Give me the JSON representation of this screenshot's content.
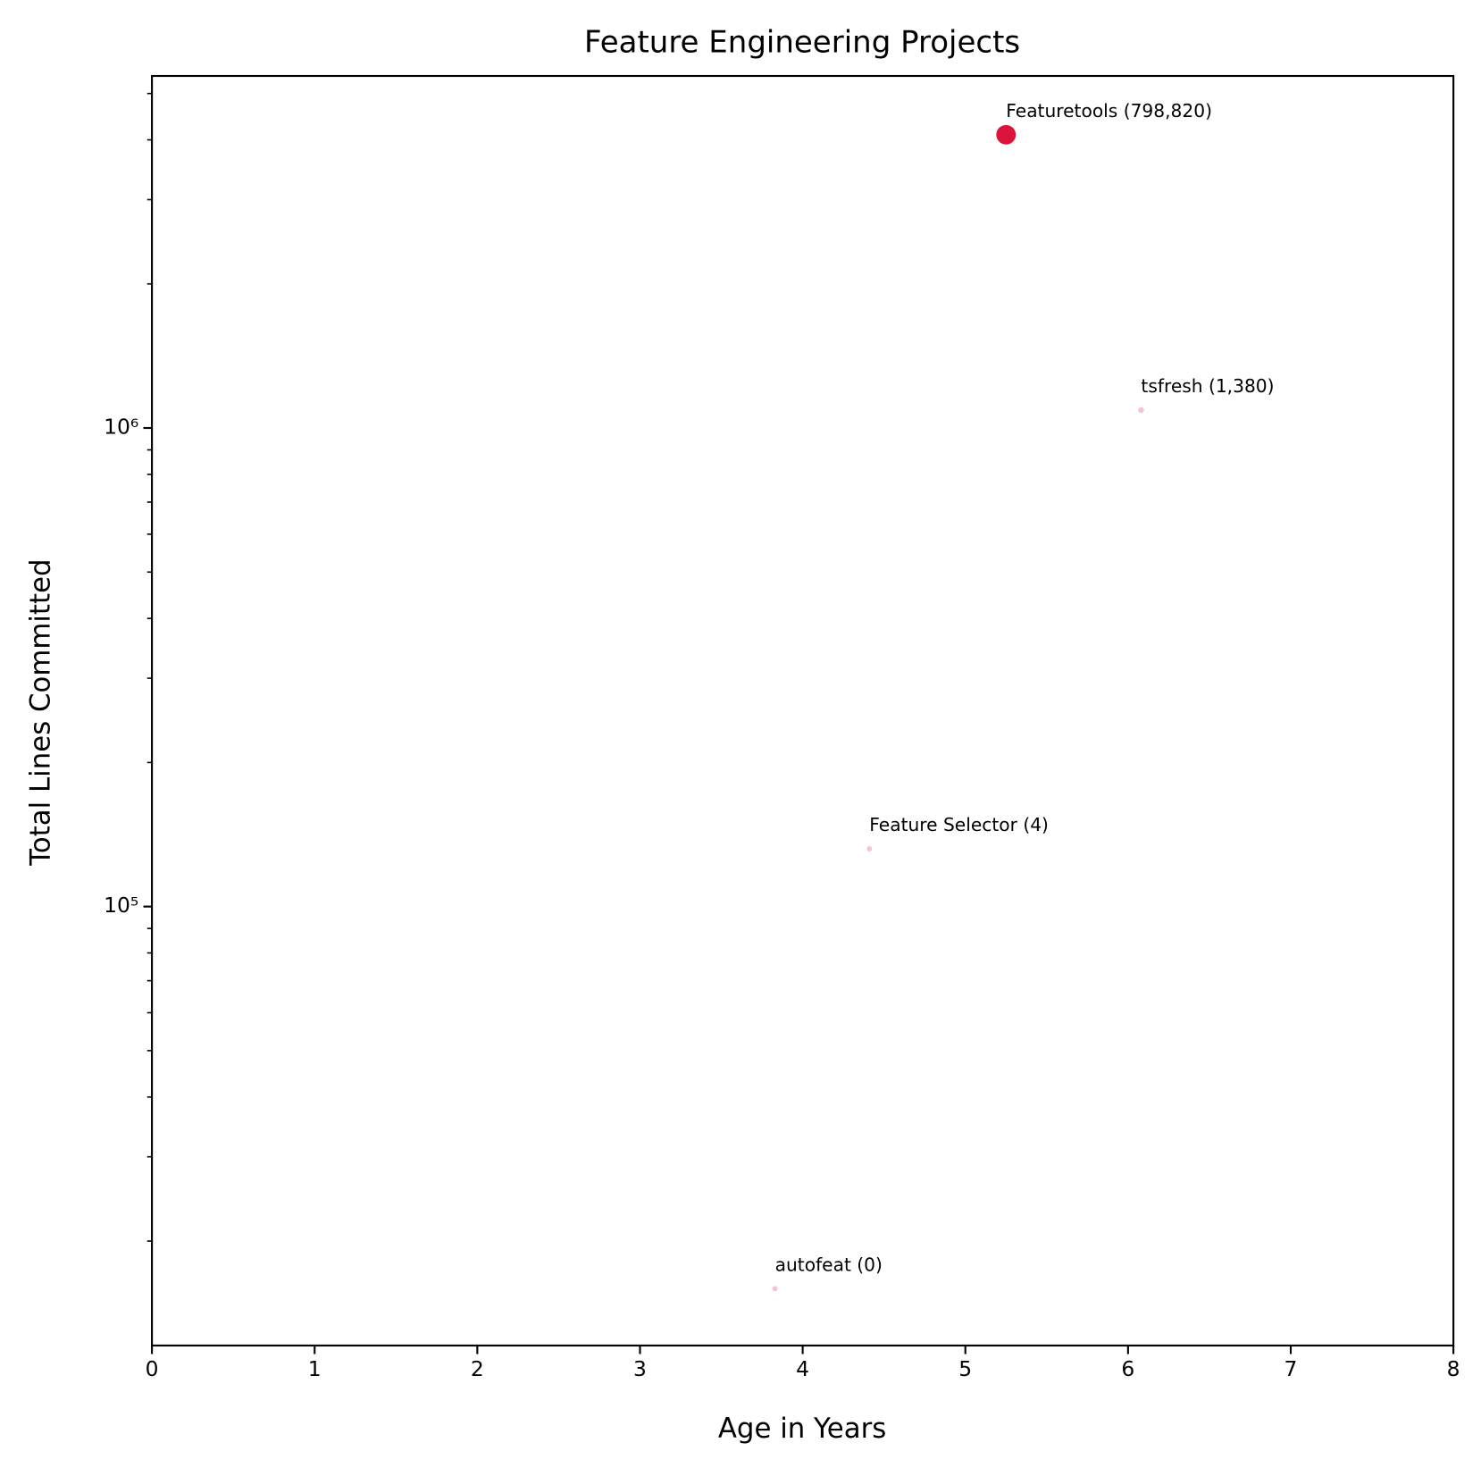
{
  "chart_data": {
    "type": "scatter",
    "title": "Feature Engineering Projects",
    "xlabel": "Age in Years",
    "ylabel": "Total Lines Committed",
    "color": "#dc143c",
    "log_y": true,
    "grid": false,
    "xlim": [
      0,
      8
    ],
    "xticks": [
      0,
      1,
      2,
      3,
      4,
      5,
      6,
      7,
      8
    ],
    "ylim": [
      12100,
      5440000
    ],
    "yticks": [
      {
        "value": 100000,
        "label": "10⁵"
      },
      {
        "value": 1000000,
        "label": "10⁶"
      }
    ],
    "yminor_ticks": [
      20000,
      30000,
      40000,
      50000,
      60000,
      70000,
      80000,
      90000,
      200000,
      300000,
      400000,
      500000,
      600000,
      700000,
      800000,
      900000,
      2000000,
      3000000,
      4000000,
      5000000
    ],
    "point_labels": [
      "Featuretools (798,820)",
      "tsfresh (1,380)",
      "Feature Selector (4)",
      "autofeat (0)"
    ],
    "x": [
      5.25,
      6.08,
      4.41,
      3.83
    ],
    "values": [
      4100000,
      1090000,
      132000,
      15900
    ],
    "sizes": [
      798820,
      1380,
      4,
      0
    ]
  }
}
